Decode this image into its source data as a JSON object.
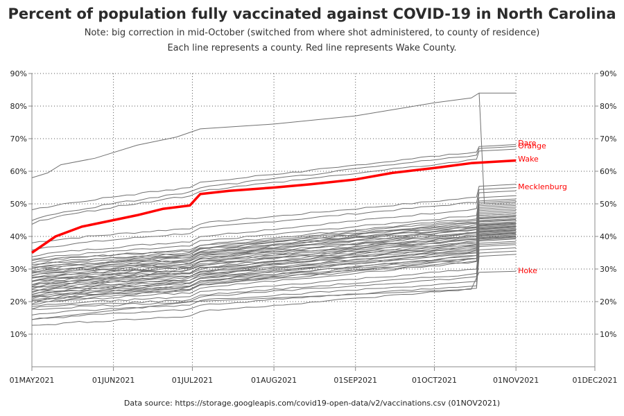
{
  "chart_data": {
    "type": "line",
    "title": "Percent of population fully vaccinated against COVID-19 in North Carolina",
    "notes": [
      "Note: big correction in mid-October (switched from where shot administered, to county of residence)",
      "Each line represents a county. Red line represents Wake County."
    ],
    "source": "Data source: https://storage.googleapis.com/covid19-open-data/v2/vaccinations.csv (01NOV2021)",
    "xlabel": "",
    "ylabel": "",
    "x_ticks": [
      "01MAY2021",
      "01JUN2021",
      "01JUL2021",
      "01AUG2021",
      "01SEP2021",
      "01OCT2021",
      "01NOV2021",
      "01DEC2021"
    ],
    "xlim": [
      "2021-05-01",
      "2021-12-01"
    ],
    "y_ticks": [
      "10%",
      "20%",
      "30%",
      "40%",
      "50%",
      "60%",
      "70%",
      "80%",
      "90%"
    ],
    "ylim": [
      0,
      90
    ],
    "y_axis_both_sides": true,
    "grid": "dotted",
    "highlight_color": "#ff0000",
    "county_color": "#707070",
    "highlight_series": {
      "name": "Wake",
      "x": [
        "2021-05-01",
        "2021-05-10",
        "2021-05-20",
        "2021-06-01",
        "2021-06-10",
        "2021-06-20",
        "2021-06-30",
        "2021-07-04",
        "2021-07-15",
        "2021-08-01",
        "2021-08-15",
        "2021-09-01",
        "2021-09-15",
        "2021-10-01",
        "2021-10-15",
        "2021-11-01"
      ],
      "y": [
        35,
        40,
        43,
        45,
        46.5,
        48.5,
        49.5,
        53,
        54,
        55,
        56,
        57.5,
        59.5,
        61,
        62.5,
        63.3
      ]
    },
    "labeled_counties": [
      {
        "name": "Dare",
        "end_value": 68.2
      },
      {
        "name": "Orange",
        "end_value": 67.6
      },
      {
        "name": "Wake",
        "end_value": 63.3
      },
      {
        "name": "Mecklenburg",
        "end_value": 54.5
      },
      {
        "name": "Hoke",
        "end_value": 29.3
      }
    ],
    "county_series": [
      {
        "start": 38,
        "jul": 44,
        "oct": 52,
        "end": 56
      },
      {
        "start": 36,
        "jul": 42.5,
        "oct": 50.5,
        "end": 55
      },
      {
        "start": 34,
        "jul": 40,
        "oct": 48.5,
        "end": 54
      },
      {
        "start": 33,
        "jul": 38.5,
        "oct": 46.5,
        "end": 52.5
      },
      {
        "start": 32,
        "jul": 37.5,
        "oct": 45.5,
        "end": 51.5
      },
      {
        "start": 31,
        "jul": 36.5,
        "oct": 44.5,
        "end": 51
      },
      {
        "start": 30.5,
        "jul": 36,
        "oct": 44,
        "end": 50.5
      },
      {
        "start": 30,
        "jul": 35.5,
        "oct": 43.5,
        "end": 50
      },
      {
        "start": 29.5,
        "jul": 35,
        "oct": 43,
        "end": 49.5
      },
      {
        "start": 29,
        "jul": 34.5,
        "oct": 42.5,
        "end": 49
      },
      {
        "start": 28.5,
        "jul": 34,
        "oct": 42,
        "end": 48.5
      },
      {
        "start": 28,
        "jul": 33.5,
        "oct": 41.5,
        "end": 48
      },
      {
        "start": 27.5,
        "jul": 33,
        "oct": 41,
        "end": 47.5
      },
      {
        "start": 27,
        "jul": 32.5,
        "oct": 40.5,
        "end": 47
      },
      {
        "start": 26.5,
        "jul": 32,
        "oct": 40,
        "end": 46.5
      },
      {
        "start": 26,
        "jul": 31.5,
        "oct": 39.5,
        "end": 46
      },
      {
        "start": 25.5,
        "jul": 31,
        "oct": 39,
        "end": 45.5
      },
      {
        "start": 25,
        "jul": 30.5,
        "oct": 38.5,
        "end": 45
      },
      {
        "start": 24.5,
        "jul": 30,
        "oct": 38,
        "end": 44.5
      },
      {
        "start": 24,
        "jul": 29.5,
        "oct": 37.5,
        "end": 44
      },
      {
        "start": 23.5,
        "jul": 29,
        "oct": 37,
        "end": 43.5
      },
      {
        "start": 23,
        "jul": 28.5,
        "oct": 36.5,
        "end": 43
      },
      {
        "start": 22.5,
        "jul": 28,
        "oct": 36,
        "end": 42.5
      },
      {
        "start": 22,
        "jul": 27.5,
        "oct": 35.5,
        "end": 42
      },
      {
        "start": 21.5,
        "jul": 27,
        "oct": 35,
        "end": 41.5
      },
      {
        "start": 21,
        "jul": 26.5,
        "oct": 34,
        "end": 41
      },
      {
        "start": 20.5,
        "jul": 26,
        "oct": 33.5,
        "end": 40.5
      },
      {
        "start": 20,
        "jul": 25.5,
        "oct": 33,
        "end": 40
      },
      {
        "start": 19.5,
        "jul": 25,
        "oct": 32.5,
        "end": 39.5
      },
      {
        "start": 32.5,
        "jul": 37,
        "oct": 45,
        "end": 47
      },
      {
        "start": 31.5,
        "jul": 36.2,
        "oct": 44.2,
        "end": 46.2
      },
      {
        "start": 30.2,
        "jul": 35.2,
        "oct": 43.2,
        "end": 45.2
      },
      {
        "start": 29.2,
        "jul": 34.2,
        "oct": 42.2,
        "end": 44.2
      },
      {
        "start": 28.2,
        "jul": 33.2,
        "oct": 41.2,
        "end": 43.8
      },
      {
        "start": 27.2,
        "jul": 32.2,
        "oct": 40.2,
        "end": 43.2
      },
      {
        "start": 26.2,
        "jul": 31.2,
        "oct": 39.2,
        "end": 42.8
      },
      {
        "start": 25.2,
        "jul": 30.2,
        "oct": 38.2,
        "end": 42.2
      },
      {
        "start": 24.2,
        "jul": 29.2,
        "oct": 37.2,
        "end": 41.8
      },
      {
        "start": 23.2,
        "jul": 28.2,
        "oct": 36.2,
        "end": 41.2
      },
      {
        "start": 22.2,
        "jul": 27.2,
        "oct": 35.2,
        "end": 40.8
      },
      {
        "start": 21.2,
        "jul": 26.2,
        "oct": 34.2,
        "end": 40.2
      },
      {
        "start": 20.2,
        "jul": 25.2,
        "oct": 33.2,
        "end": 39.8
      },
      {
        "start": 19.2,
        "jul": 24.2,
        "oct": 32.2,
        "end": 39.2
      },
      {
        "start": 18.5,
        "jul": 23,
        "oct": 30,
        "end": 38.5
      },
      {
        "start": 18,
        "jul": 22,
        "oct": 28.5,
        "end": 38
      },
      {
        "start": 17.5,
        "jul": 21.5,
        "oct": 27.5,
        "end": 37.5
      },
      {
        "start": 16,
        "jul": 20.5,
        "oct": 26,
        "end": 36.5
      },
      {
        "start": 14.5,
        "jul": 19,
        "oct": 25,
        "end": 35.5
      },
      {
        "start": 12.5,
        "jul": 17,
        "oct": 24,
        "end": 34.5
      },
      {
        "start": 48,
        "jul": 56.5,
        "oct": 66,
        "end": 68.2
      },
      {
        "start": 45,
        "jul": 55,
        "oct": 65,
        "end": 67.6
      },
      {
        "start": 44,
        "jul": 54,
        "oct": 63.5,
        "end": 66.8
      }
    ],
    "outlier_series": {
      "x": [
        "2021-05-01",
        "2021-05-07",
        "2021-05-12",
        "2021-05-25",
        "2021-06-10",
        "2021-06-25",
        "2021-07-04",
        "2021-08-01",
        "2021-09-01",
        "2021-10-01",
        "2021-10-15",
        "2021-10-18",
        "2021-11-01"
      ],
      "y": [
        58,
        59.5,
        62,
        64,
        68,
        70.5,
        73,
        74.5,
        77,
        81,
        82.5,
        84,
        84
      ]
    },
    "drop_series": {
      "x": [
        "2021-05-01",
        "2021-07-01",
        "2021-10-15",
        "2021-10-18",
        "2021-11-01"
      ],
      "y": [
        14.5,
        20,
        23.8,
        29,
        29.3
      ]
    }
  }
}
